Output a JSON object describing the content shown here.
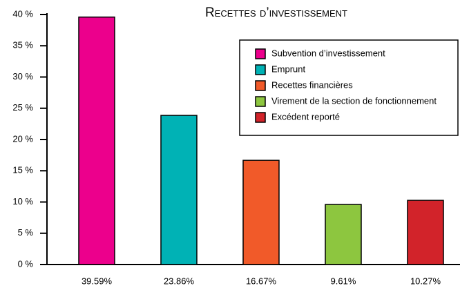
{
  "chart_data": {
    "type": "bar",
    "title": "Recettes d’investissement",
    "categories": [
      "Subvention d’investissement",
      "Emprunt",
      "Recettes financières",
      "Virement de la section de fonctionnement",
      "Excédent reporté"
    ],
    "values": [
      39.59,
      23.86,
      16.67,
      9.61,
      10.27
    ],
    "value_labels": [
      "39.59%",
      "23.86%",
      "16.67%",
      "9.61%",
      "10.27%"
    ],
    "colors": [
      "#ec008c",
      "#00b2b5",
      "#f15a29",
      "#8dc63f",
      "#d2232a"
    ],
    "ylim": [
      0,
      40
    ],
    "yticks": [
      {
        "value": 0,
        "label": "0 %"
      },
      {
        "value": 5,
        "label": "5 %"
      },
      {
        "value": 10,
        "label": "10 %"
      },
      {
        "value": 15,
        "label": "15 %"
      },
      {
        "value": 20,
        "label": "20 %"
      },
      {
        "value": 25,
        "label": "25 %"
      },
      {
        "value": 30,
        "label": "30 %"
      },
      {
        "value": 35,
        "label": "35 %"
      },
      {
        "value": 40,
        "label": "40 %"
      }
    ],
    "legend": "upper right"
  }
}
